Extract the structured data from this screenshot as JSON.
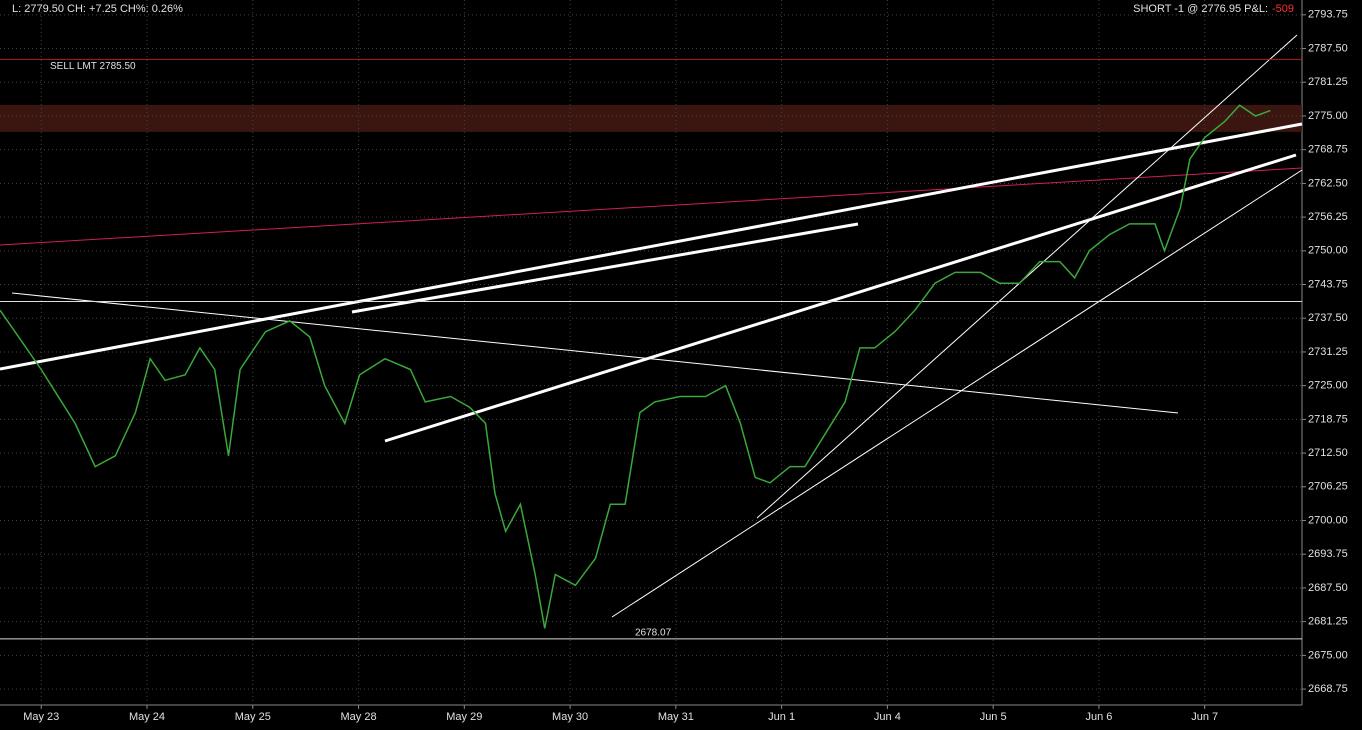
{
  "header": {
    "quote": "L: 2779.50 CH: +7.25 CH%: 0.26%",
    "position": "SHORT -1 @ 2776.95 P&L:",
    "pnl": "-509"
  },
  "chart_data": {
    "type": "line",
    "x": [
      -0.39,
      0,
      0.32,
      0.51,
      0.7,
      0.89,
      1.03,
      1.17,
      1.36,
      1.5,
      1.64,
      1.77,
      1.88,
      2.12,
      2.35,
      2.54,
      2.68,
      2.87,
      3.01,
      3.25,
      3.49,
      3.63,
      3.87,
      4.05,
      4.2,
      4.29,
      4.39,
      4.53,
      4.67,
      4.76,
      4.86,
      5.05,
      5.24,
      5.38,
      5.52,
      5.66,
      5.8,
      6.04,
      6.28,
      6.47,
      6.61,
      6.75,
      6.89,
      7.08,
      7.22,
      7.41,
      7.6,
      7.74,
      7.88,
      8.07,
      8.26,
      8.45,
      8.64,
      8.88,
      9.06,
      9.25,
      9.44,
      9.63,
      9.77,
      9.91,
      10.1,
      10.29,
      10.53,
      10.62,
      10.77,
      10.86,
      11.0,
      11.19,
      11.33,
      11.48,
      11.62
    ],
    "series": [
      {
        "color": "#3aa83a",
        "values": [
          2739,
          2728,
          2718,
          2710,
          2712,
          2720,
          2730,
          2726,
          2727,
          2732,
          2728,
          2712,
          2728,
          2735,
          2737,
          2734,
          2725,
          2718,
          2727,
          2730,
          2728,
          2722,
          2723,
          2721,
          2718,
          2705,
          2698,
          2703,
          2690,
          2680,
          2690,
          2688,
          2693,
          2703,
          2703,
          2720,
          2722,
          2723,
          2723,
          2725,
          2718,
          2708,
          2707,
          2710,
          2710,
          2716,
          2722,
          2732,
          2732,
          2735,
          2739,
          2744,
          2746,
          2746,
          2744,
          2744,
          2748,
          2748,
          2745,
          2750,
          2753,
          2755,
          2755,
          2750,
          2758,
          2767,
          2771,
          2774,
          2777,
          2775,
          2776
        ]
      }
    ],
    "xlim": [
      -0.39,
      11.92
    ],
    "xticks": [
      {
        "value": 0,
        "label": "May 23"
      },
      {
        "value": 1,
        "label": "May 24"
      },
      {
        "value": 2,
        "label": "May 25"
      },
      {
        "value": 3,
        "label": "May 28"
      },
      {
        "value": 4,
        "label": "May 29"
      },
      {
        "value": 5,
        "label": "May 30"
      },
      {
        "value": 6,
        "label": "May 31"
      },
      {
        "value": 7,
        "label": "Jun 1"
      },
      {
        "value": 8,
        "label": "Jun 4"
      },
      {
        "value": 9,
        "label": "Jun 5"
      },
      {
        "value": 10,
        "label": "Jun 6"
      },
      {
        "value": 11,
        "label": "Jun 7"
      }
    ],
    "ylim": [
      2665.8,
      2796.5
    ],
    "yticks": [
      2668.75,
      {
        "value": 2675,
        "label": "2675.00"
      },
      2681.25,
      {
        "value": 2687.5,
        "label": "2687.50"
      },
      2693.75,
      {
        "value": 2700,
        "label": "2700.00"
      },
      2706.25,
      {
        "value": 2712.5,
        "label": "2712.50"
      },
      2718.75,
      {
        "value": 2725,
        "label": "2725.00"
      },
      2731.25,
      {
        "value": 2737.5,
        "label": "2737.50"
      },
      2743.75,
      {
        "value": 2750,
        "label": "2750.00"
      },
      2756.25,
      {
        "value": 2762.5,
        "label": "2762.50"
      },
      2768.75,
      {
        "value": 2775,
        "label": "2775.00"
      },
      2781.25,
      {
        "value": 2787.5,
        "label": "2787.50"
      },
      2793.75
    ],
    "grid": true,
    "levels": [
      {
        "value": 2785.5,
        "label": "SELL LMT 2785.50",
        "color": "#b02020"
      },
      {
        "value": 2678.07,
        "label": 2678.07,
        "color": "#dddddd"
      },
      {
        "value": 2740.6,
        "color": "#dddddd"
      }
    ],
    "zone": [
      2772.05,
      2777.06
    ]
  }
}
